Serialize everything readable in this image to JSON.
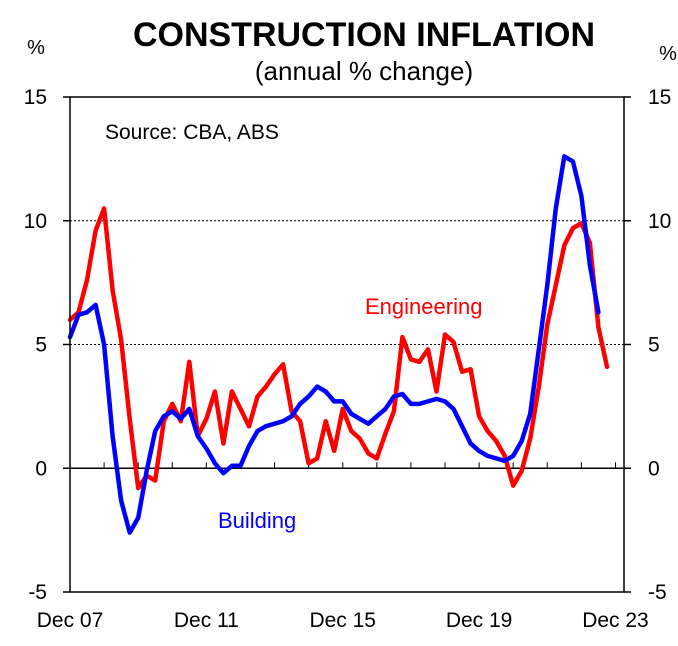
{
  "chart_data": {
    "type": "line",
    "title": "CONSTRUCTION INFLATION",
    "subtitle": "(annual % change)",
    "y_unit_left": "%",
    "y_unit_right": "%",
    "ylim": [
      -5,
      15
    ],
    "yticks": [
      -5,
      0,
      5,
      10,
      15
    ],
    "ytick_labels": [
      "-5",
      "0",
      "5",
      "10",
      "15"
    ],
    "gridlines_at": [
      5,
      10
    ],
    "x_range": [
      2007.75,
      2024.0
    ],
    "xticks": [
      {
        "x": 2007.75,
        "label": "Dec 07"
      },
      {
        "x": 2011.75,
        "label": "Dec 11"
      },
      {
        "x": 2015.75,
        "label": "Dec 15"
      },
      {
        "x": 2019.75,
        "label": "Dec 19"
      },
      {
        "x": 2023.75,
        "label": "Dec 23"
      }
    ],
    "annotation": "Source: CBA, ABS",
    "series": [
      {
        "name": "Engineering",
        "color": "#ff0000",
        "x": [
          2007.75,
          2008.0,
          2008.25,
          2008.5,
          2008.75,
          2009.0,
          2009.25,
          2009.5,
          2009.75,
          2010.0,
          2010.25,
          2010.5,
          2010.75,
          2011.0,
          2011.25,
          2011.5,
          2011.75,
          2012.0,
          2012.25,
          2012.5,
          2012.75,
          2013.0,
          2013.25,
          2013.5,
          2013.75,
          2014.0,
          2014.25,
          2014.5,
          2014.75,
          2015.0,
          2015.25,
          2015.5,
          2015.75,
          2016.0,
          2016.25,
          2016.5,
          2016.75,
          2017.0,
          2017.25,
          2017.5,
          2017.75,
          2018.0,
          2018.25,
          2018.5,
          2018.75,
          2019.0,
          2019.25,
          2019.5,
          2019.75,
          2020.0,
          2020.25,
          2020.5,
          2020.75,
          2021.0,
          2021.25,
          2021.5,
          2021.75,
          2022.0,
          2022.25,
          2022.5,
          2022.75,
          2023.0,
          2023.25,
          2023.5,
          2023.75
        ],
        "values": [
          6.0,
          6.3,
          7.6,
          9.6,
          10.5,
          7.2,
          5.2,
          2.0,
          -0.8,
          -0.3,
          -0.5,
          1.9,
          2.6,
          1.9,
          4.3,
          1.3,
          2.0,
          3.1,
          1.0,
          3.1,
          2.4,
          1.7,
          2.9,
          3.3,
          3.8,
          4.2,
          2.3,
          1.9,
          0.2,
          0.4,
          1.9,
          0.7,
          2.4,
          1.5,
          1.2,
          0.6,
          0.4,
          1.4,
          2.3,
          5.3,
          4.4,
          4.3,
          4.8,
          3.1,
          5.4,
          5.1,
          3.9,
          4.0,
          2.1,
          1.5,
          1.1,
          0.5,
          -0.7,
          -0.1,
          1.2,
          3.3,
          5.8,
          7.4,
          9.0,
          9.7,
          9.9,
          9.1,
          5.7,
          4.1,
          null
        ]
      },
      {
        "name": "Building",
        "color": "#0000ff",
        "x": [
          2007.75,
          2008.0,
          2008.25,
          2008.5,
          2008.75,
          2009.0,
          2009.25,
          2009.5,
          2009.75,
          2010.0,
          2010.25,
          2010.5,
          2010.75,
          2011.0,
          2011.25,
          2011.5,
          2011.75,
          2012.0,
          2012.25,
          2012.5,
          2012.75,
          2013.0,
          2013.25,
          2013.5,
          2013.75,
          2014.0,
          2014.25,
          2014.5,
          2014.75,
          2015.0,
          2015.25,
          2015.5,
          2015.75,
          2016.0,
          2016.25,
          2016.5,
          2016.75,
          2017.0,
          2017.25,
          2017.5,
          2017.75,
          2018.0,
          2018.25,
          2018.5,
          2018.75,
          2019.0,
          2019.25,
          2019.5,
          2019.75,
          2020.0,
          2020.25,
          2020.5,
          2020.75,
          2021.0,
          2021.25,
          2021.5,
          2021.75,
          2022.0,
          2022.25,
          2022.5,
          2022.75,
          2023.0,
          2023.25,
          2023.5
        ],
        "values": [
          5.3,
          6.2,
          6.3,
          6.6,
          5.0,
          1.3,
          -1.3,
          -2.6,
          -2.0,
          -0.1,
          1.5,
          2.1,
          2.3,
          2.0,
          2.4,
          1.3,
          0.8,
          0.2,
          -0.2,
          0.1,
          0.1,
          0.9,
          1.5,
          1.7,
          1.8,
          1.9,
          2.1,
          2.6,
          2.9,
          3.3,
          3.1,
          2.7,
          2.7,
          2.2,
          2.0,
          1.8,
          2.1,
          2.4,
          2.9,
          3.0,
          2.6,
          2.6,
          2.7,
          2.8,
          2.7,
          2.4,
          1.7,
          1.0,
          0.7,
          0.5,
          0.4,
          0.3,
          0.5,
          1.1,
          2.2,
          4.8,
          7.4,
          10.5,
          12.6,
          12.4,
          11.0,
          8.2,
          6.3,
          null
        ]
      }
    ],
    "series_labels": [
      {
        "name": "Engineering",
        "text": "Engineering"
      },
      {
        "name": "Building",
        "text": "Building"
      }
    ]
  }
}
